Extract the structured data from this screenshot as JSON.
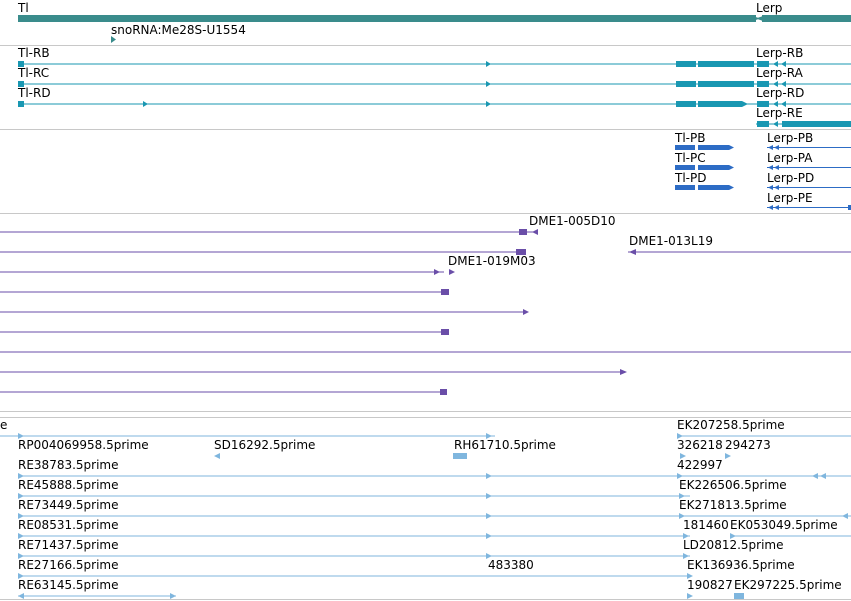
{
  "colors": {
    "gene": "#3a8c8c",
    "transcript": "#1997b2",
    "protein": "#2d6cc5",
    "clone": "#6a4ea8",
    "est": "#7fb6de",
    "separator": "#c8c8c8"
  },
  "genes": [
    {
      "label": "Tl",
      "strand": "+"
    },
    {
      "label": "Lerp",
      "strand": "-"
    },
    {
      "label": "snoRNA:Me28S-U1554",
      "strand": "+"
    }
  ],
  "transcripts": [
    {
      "label": "Tl-RB"
    },
    {
      "label": "Tl-RC"
    },
    {
      "label": "Tl-RD"
    },
    {
      "label": "Lerp-RB"
    },
    {
      "label": "Lerp-RA"
    },
    {
      "label": "Lerp-RD"
    },
    {
      "label": "Lerp-RE"
    }
  ],
  "proteins": [
    {
      "label": "Tl-PB"
    },
    {
      "label": "Tl-PC"
    },
    {
      "label": "Tl-PD"
    },
    {
      "label": "Lerp-PB"
    },
    {
      "label": "Lerp-PA"
    },
    {
      "label": "Lerp-PD"
    },
    {
      "label": "Lerp-PE"
    }
  ],
  "clones": [
    {
      "label": "DME1-005D10"
    },
    {
      "label": "DME1-013L19"
    },
    {
      "label": "DME1-019M03"
    }
  ],
  "ests": [
    {
      "label": "e"
    },
    {
      "label": "RP004069958.5prime"
    },
    {
      "label": "SD16292.5prime"
    },
    {
      "label": "RH61710.5prime"
    },
    {
      "label": "RE38783.5prime"
    },
    {
      "label": "RE45888.5prime"
    },
    {
      "label": "RE73449.5prime"
    },
    {
      "label": "RE08531.5prime"
    },
    {
      "label": "RE71437.5prime"
    },
    {
      "label": "RE27166.5prime"
    },
    {
      "label": "483380"
    },
    {
      "label": "RE63145.5prime"
    },
    {
      "label": "EK207258.5prime"
    },
    {
      "label": "326218"
    },
    {
      "label": "294273"
    },
    {
      "label": "422997"
    },
    {
      "label": "EK226506.5prime"
    },
    {
      "label": "EK271813.5prime"
    },
    {
      "label": "181460"
    },
    {
      "label": "EK053049.5prime"
    },
    {
      "label": "LD20812.5prime"
    },
    {
      "label": "EK136936.5prime"
    },
    {
      "label": "190827"
    },
    {
      "label": "EK297225.5prime"
    }
  ]
}
